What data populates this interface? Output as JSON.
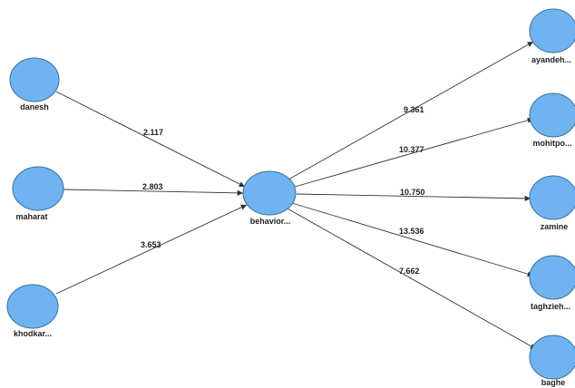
{
  "diagram": {
    "nodes": {
      "danesh": {
        "label": "danesh",
        "color": "#6fb4f0"
      },
      "maharat": {
        "label": "maharat",
        "color": "#6fb4f0"
      },
      "khodkar": {
        "label": "khodkar...",
        "color": "#6fb4f0"
      },
      "behavior": {
        "label": "behavior...",
        "color": "#6fb4f0"
      },
      "ayandeh": {
        "label": "ayandeh...",
        "color": "#6fb4f0"
      },
      "mohitpo": {
        "label": "mohitpo...",
        "color": "#6fb4f0"
      },
      "zamine": {
        "label": "zamine",
        "color": "#6fb4f0"
      },
      "taghzieh": {
        "label": "taghzieh...",
        "color": "#6fb4f0"
      },
      "baghe": {
        "label": "baghe",
        "color": "#6fb4f0"
      }
    },
    "edges": {
      "danesh_behavior": {
        "label": "2.117"
      },
      "maharat_behavior": {
        "label": "2.803"
      },
      "khodkar_behavior": {
        "label": "3.653"
      },
      "behavior_ayandeh": {
        "label": "9.361"
      },
      "behavior_mohitpo": {
        "label": "10.377"
      },
      "behavior_zamine": {
        "label": "10.750"
      },
      "behavior_taghzieh": {
        "label": "13.536"
      },
      "behavior_baghe": {
        "label": "7.662"
      }
    },
    "colors": {
      "node_fill": "#6fb4f0",
      "node_stroke": "#3a6f9a",
      "edge": "#333333"
    }
  }
}
